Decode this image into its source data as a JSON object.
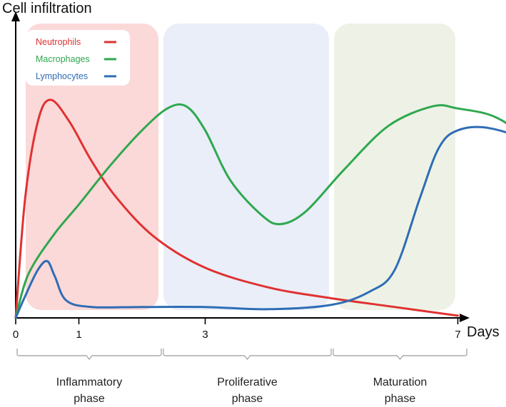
{
  "chart_data": {
    "type": "line",
    "ylabel": "Cell infiltration",
    "xlabel": "Days",
    "xlim": [
      0,
      9.6
    ],
    "ylim": [
      0,
      1
    ],
    "x_ticks": [
      {
        "value": 0,
        "label": "0"
      },
      {
        "value": 1,
        "label": "1"
      },
      {
        "value": 3,
        "label": "3"
      },
      {
        "value": 7,
        "label": "7"
      }
    ],
    "phases": [
      {
        "name": "Inflammatory phase",
        "lines": [
          "Inflammatory",
          "phase"
        ],
        "start": 0,
        "end": 3,
        "color": "#fbd9d9"
      },
      {
        "name": "Proliferative phase",
        "lines": [
          "Proliferative",
          "phase"
        ],
        "start": 3,
        "end": 7,
        "color": "#e9eef8"
      },
      {
        "name": "Maturation phase",
        "lines": [
          "Maturation",
          "phase"
        ],
        "start": 7,
        "end": 9.6,
        "color": "#eef2e6"
      }
    ],
    "legend_position": "top-left",
    "series": [
      {
        "name": "Neutrophils",
        "color": "#e03131",
        "points": [
          [
            0,
            0
          ],
          [
            0.15,
            0.55
          ],
          [
            0.35,
            0.9
          ],
          [
            0.55,
            1.0
          ],
          [
            0.85,
            0.9
          ],
          [
            1.2,
            0.72
          ],
          [
            1.6,
            0.55
          ],
          [
            2.2,
            0.37
          ],
          [
            3.0,
            0.23
          ],
          [
            4.0,
            0.14
          ],
          [
            5.0,
            0.09
          ],
          [
            6.0,
            0.05
          ],
          [
            7.0,
            0.01
          ]
        ]
      },
      {
        "name": "Macrophages",
        "color": "#2fa84f",
        "points": [
          [
            0,
            0
          ],
          [
            0.2,
            0.2
          ],
          [
            0.6,
            0.38
          ],
          [
            1.0,
            0.52
          ],
          [
            1.5,
            0.7
          ],
          [
            2.0,
            0.86
          ],
          [
            2.4,
            0.96
          ],
          [
            2.7,
            0.97
          ],
          [
            3.0,
            0.86
          ],
          [
            3.4,
            0.63
          ],
          [
            3.9,
            0.47
          ],
          [
            4.2,
            0.43
          ],
          [
            4.6,
            0.49
          ],
          [
            5.2,
            0.68
          ],
          [
            5.9,
            0.88
          ],
          [
            6.6,
            0.97
          ],
          [
            7.0,
            0.96
          ],
          [
            7.6,
            0.92
          ],
          [
            8.2,
            0.8
          ],
          [
            8.8,
            0.64
          ],
          [
            9.4,
            0.44
          ]
        ]
      },
      {
        "name": "Lymphocytes",
        "color": "#2e6db5",
        "points": [
          [
            0,
            0
          ],
          [
            0.15,
            0.1
          ],
          [
            0.35,
            0.22
          ],
          [
            0.5,
            0.26
          ],
          [
            0.62,
            0.19
          ],
          [
            0.8,
            0.08
          ],
          [
            1.2,
            0.05
          ],
          [
            2.0,
            0.05
          ],
          [
            3.0,
            0.05
          ],
          [
            4.0,
            0.04
          ],
          [
            5.0,
            0.06
          ],
          [
            5.6,
            0.12
          ],
          [
            6.0,
            0.22
          ],
          [
            6.4,
            0.55
          ],
          [
            6.7,
            0.78
          ],
          [
            7.0,
            0.86
          ],
          [
            7.5,
            0.87
          ],
          [
            8.2,
            0.8
          ],
          [
            8.8,
            0.68
          ],
          [
            9.4,
            0.53
          ]
        ]
      }
    ]
  }
}
